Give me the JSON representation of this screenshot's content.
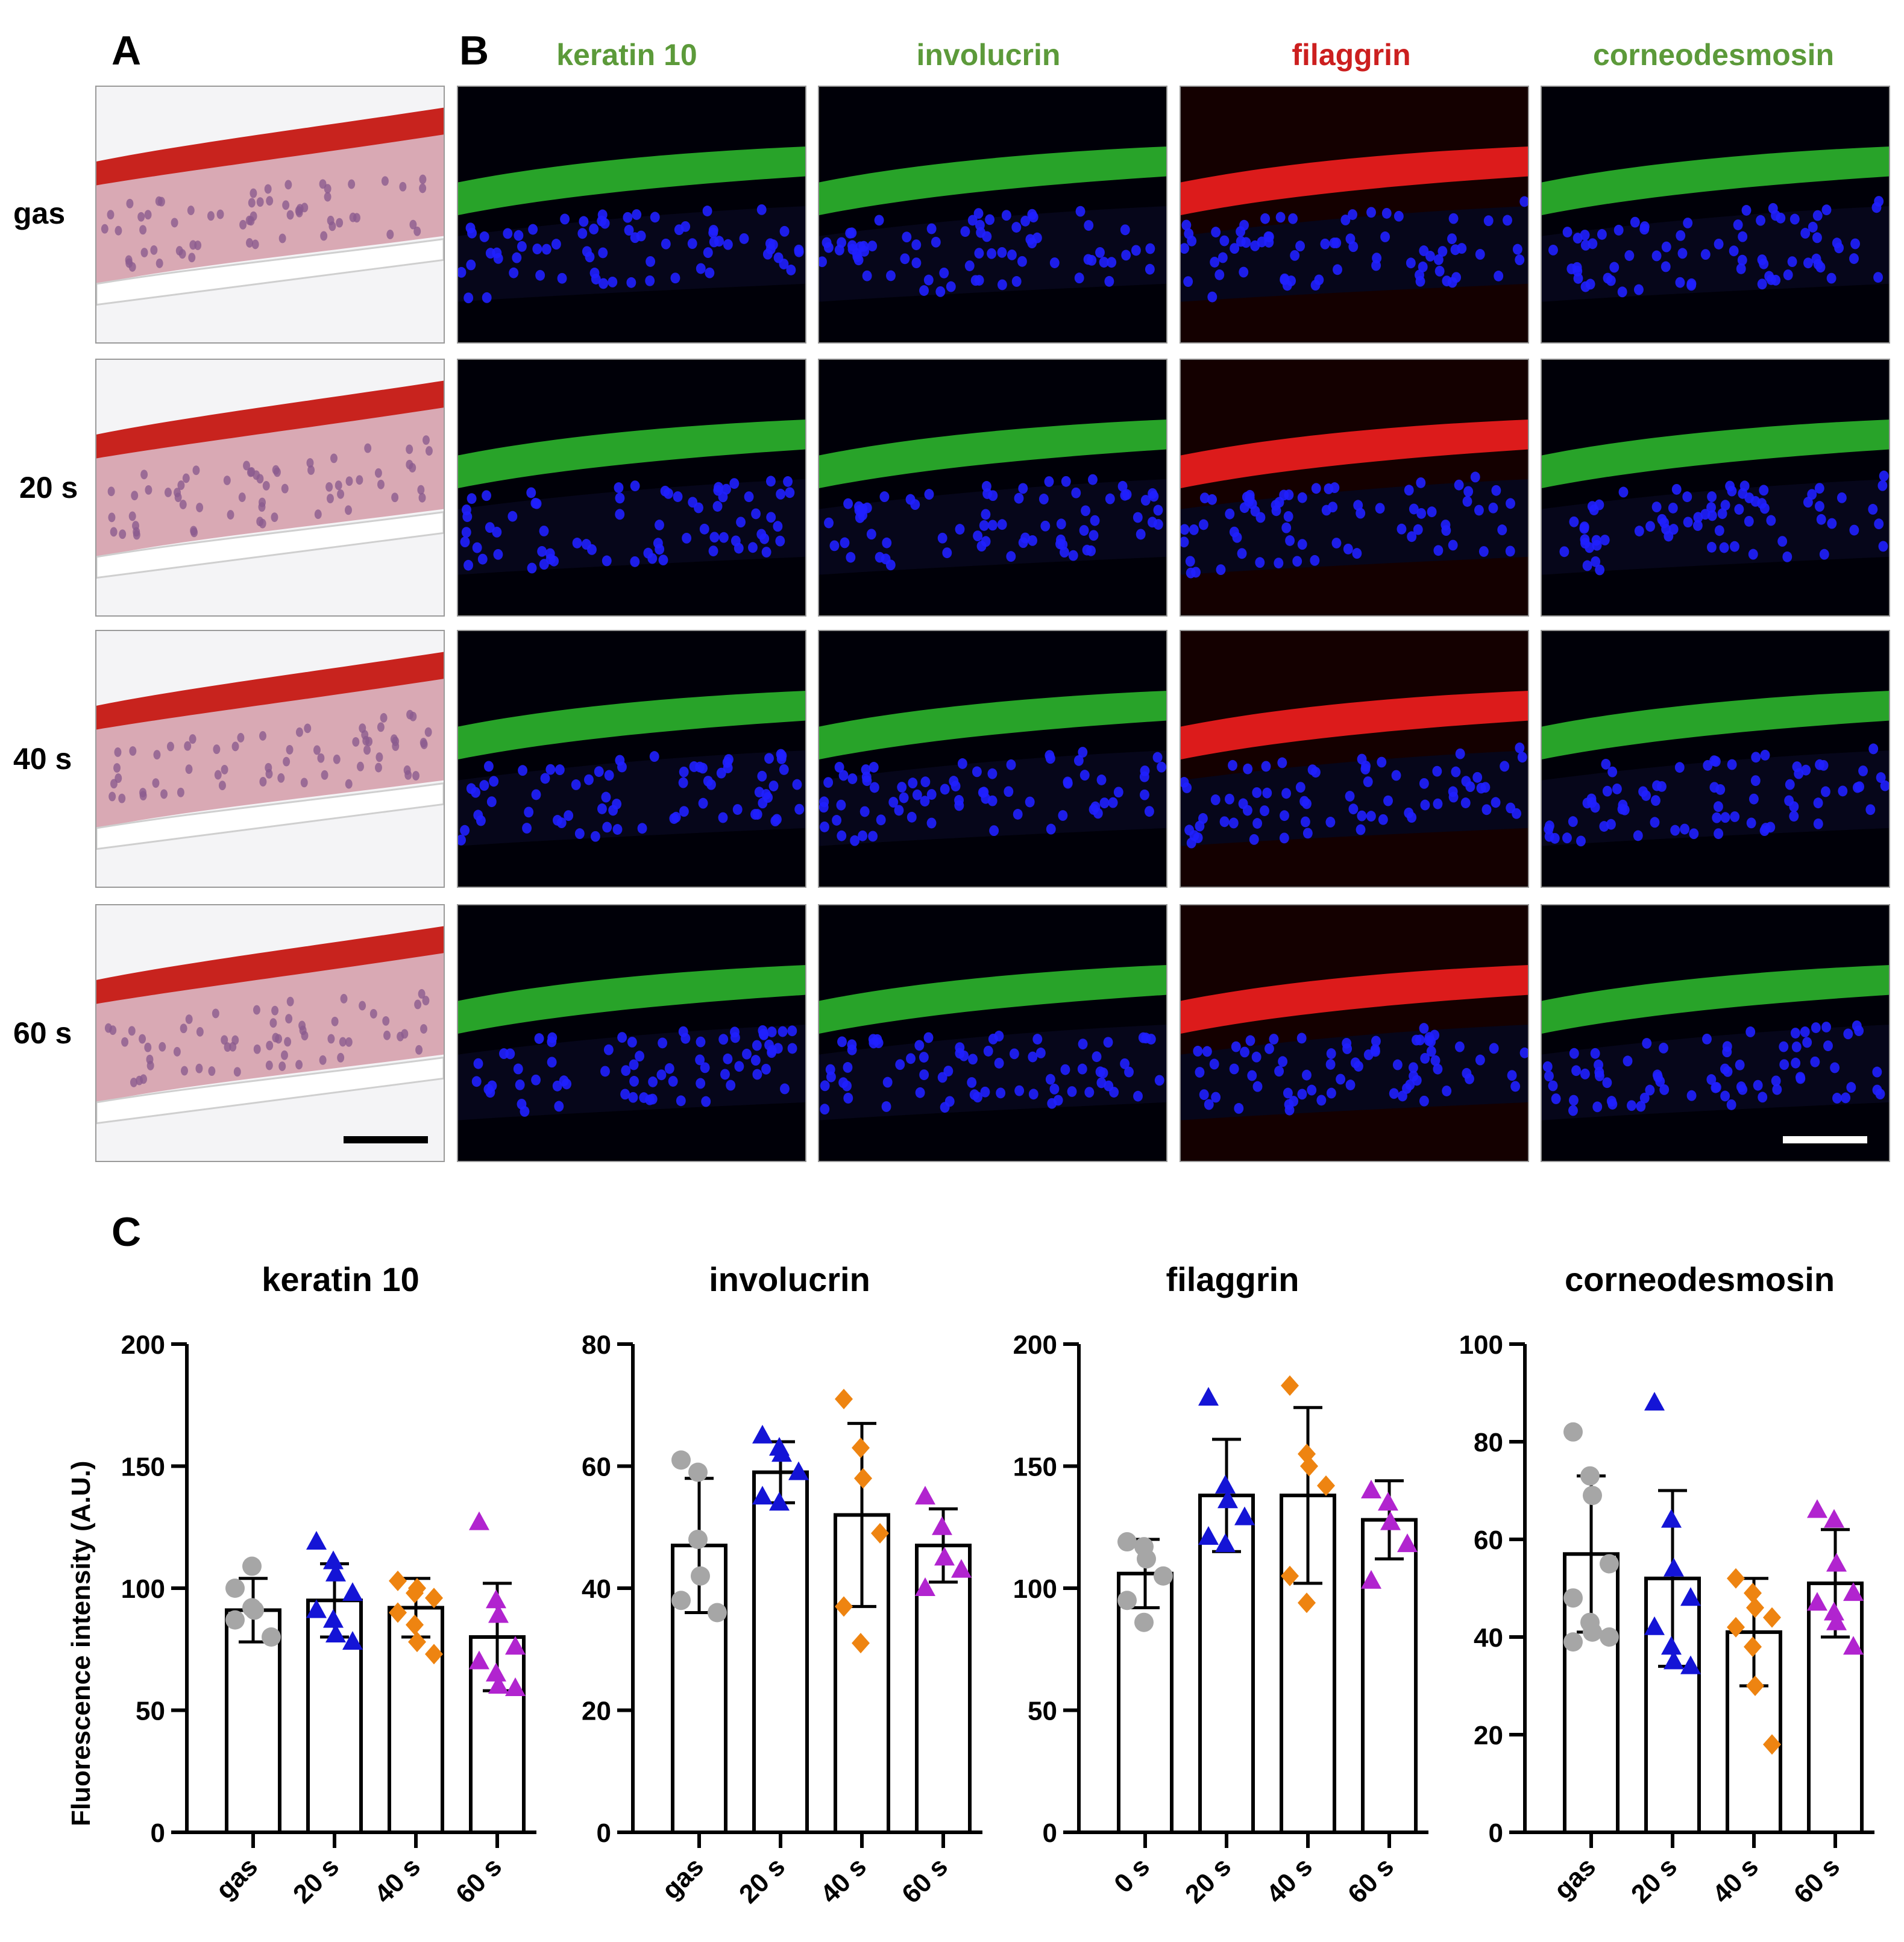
{
  "panels": {
    "a": "A",
    "b": "B",
    "c": "C"
  },
  "rows": [
    "gas",
    "20 s",
    "40 s",
    "60 s"
  ],
  "stain_columns": [
    {
      "label": "keratin 10",
      "color": "#5c9a3a"
    },
    {
      "label": "involucrin",
      "color": "#5c9a3a"
    },
    {
      "label": "filaggrin",
      "color": "#cc1f1f"
    },
    {
      "label": "corneodesmosin",
      "color": "#5c9a3a"
    }
  ],
  "colors": {
    "gas": "#a6a6a6",
    "20s": "#1414d6",
    "40s": "#ee8411",
    "60s": "#b124cf",
    "he_stratum": "#c8231e",
    "he_tissue": "#d9a9b4",
    "nuclei": "#2020ff",
    "green": "#2fbf2f",
    "red": "#ff2020"
  },
  "ylabel": "Fluorescence intensity (A.U.)",
  "chart_data": [
    {
      "type": "bar",
      "title": "keratin 10",
      "categories": [
        "gas",
        "20 s",
        "40 s",
        "60 s"
      ],
      "values": [
        91,
        95,
        92,
        80
      ],
      "errors": [
        13,
        15,
        12,
        22
      ],
      "ylim": [
        0,
        200
      ],
      "yticks": [
        0,
        50,
        100,
        150,
        200
      ],
      "markers": [
        "circle",
        "triangle",
        "diamond",
        "triangle"
      ],
      "points": [
        [
          100,
          109,
          91,
          80,
          87,
          92
        ],
        [
          119,
          111,
          106,
          98,
          91,
          87,
          81,
          78
        ],
        [
          103,
          98,
          100,
          96,
          90,
          85,
          78,
          73
        ],
        [
          127,
          95,
          89,
          76,
          70,
          65,
          60,
          59
        ]
      ]
    },
    {
      "type": "bar",
      "title": "involucrin",
      "categories": [
        "gas",
        "20 s",
        "40 s",
        "60 s"
      ],
      "values": [
        47,
        59,
        52,
        47
      ],
      "errors": [
        11,
        5,
        15,
        6
      ],
      "ylim": [
        0,
        80
      ],
      "yticks": [
        0,
        20,
        40,
        60,
        80
      ],
      "markers": [
        "circle",
        "triangle",
        "diamond",
        "triangle"
      ],
      "points": [
        [
          61,
          59,
          42,
          36,
          38,
          48
        ],
        [
          65,
          63,
          62,
          59,
          55,
          54
        ],
        [
          71,
          63,
          58,
          49,
          37,
          31
        ],
        [
          55,
          50,
          45,
          43,
          40
        ]
      ]
    },
    {
      "type": "bar",
      "title": "filaggrin",
      "categories": [
        "0 s",
        "20 s",
        "40 s",
        "60 s"
      ],
      "values": [
        106,
        138,
        138,
        128
      ],
      "errors": [
        14,
        23,
        36,
        16
      ],
      "ylim": [
        0,
        200
      ],
      "yticks": [
        0,
        50,
        100,
        150,
        200
      ],
      "markers": [
        "circle",
        "triangle",
        "diamond",
        "triangle"
      ],
      "points": [
        [
          119,
          117,
          112,
          105,
          95,
          86
        ],
        [
          178,
          142,
          136,
          129,
          121,
          118
        ],
        [
          183,
          155,
          150,
          142,
          105,
          94
        ],
        [
          140,
          135,
          127,
          118,
          103
        ]
      ]
    },
    {
      "type": "bar",
      "title": "corneodesmosin",
      "categories": [
        "gas",
        "20 s",
        "40 s",
        "60 s"
      ],
      "values": [
        57,
        52,
        41,
        51
      ],
      "errors": [
        16,
        18,
        11,
        11
      ],
      "ylim": [
        0,
        100
      ],
      "yticks": [
        0,
        20,
        40,
        60,
        80,
        100
      ],
      "markers": [
        "circle",
        "triangle",
        "diamond",
        "triangle"
      ],
      "points": [
        [
          82,
          73,
          69,
          55,
          48,
          43,
          41,
          40,
          39
        ],
        [
          88,
          64,
          54,
          48,
          42,
          38,
          35,
          34
        ],
        [
          52,
          49,
          46,
          44,
          42,
          38,
          30,
          18
        ],
        [
          66,
          64,
          55,
          49,
          47,
          45,
          43,
          38
        ]
      ]
    }
  ]
}
